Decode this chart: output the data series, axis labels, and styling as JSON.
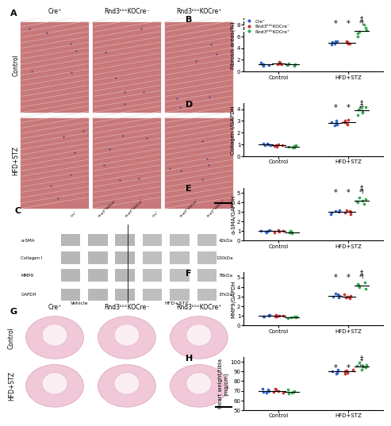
{
  "panel_B": {
    "title": "B",
    "ylabel": "Fibrosis areas(%)",
    "xticks": [
      "Control",
      "HFD+STZ"
    ],
    "ylim": [
      0,
      9
    ],
    "yticks": [
      0,
      2,
      4,
      6,
      8
    ],
    "blue_control": [
      1.1,
      1.3,
      1.5,
      1.2,
      1.0
    ],
    "red_control": [
      1.4,
      1.6,
      1.3,
      1.5,
      1.2
    ],
    "green_control": [
      1.2,
      1.4,
      1.1,
      1.3,
      1.0
    ],
    "blue_hfd": [
      4.8,
      5.0,
      5.2,
      4.6,
      5.1
    ],
    "red_hfd": [
      4.7,
      4.9,
      5.1,
      4.8,
      5.0
    ],
    "green_hfd": [
      6.0,
      6.5,
      7.0,
      7.5,
      8.0,
      6.8
    ]
  },
  "panel_D": {
    "title": "D",
    "ylabel": "Collagen I/GAPDH",
    "xticks": [
      "Control",
      "HFD+STZ"
    ],
    "ylim": [
      0,
      4.5
    ],
    "yticks": [
      0,
      1,
      2,
      3,
      4
    ],
    "blue_control": [
      0.9,
      1.0,
      1.1,
      0.95,
      1.05
    ],
    "red_control": [
      0.85,
      0.9,
      1.0,
      0.95,
      0.8
    ],
    "green_control": [
      0.7,
      0.8,
      0.9,
      0.75,
      0.85
    ],
    "blue_hfd": [
      2.6,
      2.8,
      3.0,
      2.7,
      2.9
    ],
    "red_hfd": [
      2.7,
      2.9,
      3.1,
      2.8,
      3.0
    ],
    "green_hfd": [
      3.5,
      3.8,
      4.0,
      4.2,
      3.7,
      4.1
    ]
  },
  "panel_E": {
    "title": "E",
    "ylabel": "α-SMA/GAPDH",
    "xticks": [
      "Control",
      "HFD+STZ"
    ],
    "ylim": [
      0,
      5.5
    ],
    "yticks": [
      0,
      1,
      2,
      3,
      4,
      5
    ],
    "blue_control": [
      0.9,
      1.0,
      1.1,
      0.95,
      1.05
    ],
    "red_control": [
      0.9,
      1.0,
      1.1,
      1.0,
      0.95
    ],
    "green_control": [
      0.8,
      0.9,
      1.0,
      0.85,
      0.95
    ],
    "blue_hfd": [
      2.8,
      3.0,
      3.2,
      2.9,
      3.1
    ],
    "red_hfd": [
      2.9,
      3.0,
      3.2,
      3.1,
      2.8
    ],
    "green_hfd": [
      3.8,
      4.0,
      4.3,
      4.5,
      4.1,
      4.2
    ]
  },
  "panel_F": {
    "title": "F",
    "ylabel": "MMP9/GAPDH",
    "xticks": [
      "Control",
      "HFD+STZ"
    ],
    "ylim": [
      0,
      5.5
    ],
    "yticks": [
      0,
      1,
      2,
      3,
      4,
      5
    ],
    "blue_control": [
      0.9,
      1.0,
      1.1,
      0.95,
      1.05
    ],
    "red_control": [
      0.9,
      1.0,
      1.1,
      1.0,
      0.95
    ],
    "green_control": [
      0.75,
      0.85,
      0.95,
      0.8,
      0.9
    ],
    "blue_hfd": [
      2.9,
      3.1,
      3.3,
      3.0,
      3.2
    ],
    "red_hfd": [
      2.8,
      3.0,
      3.2,
      3.1,
      2.9
    ],
    "green_hfd": [
      3.8,
      4.0,
      4.3,
      4.5,
      4.1,
      4.2
    ]
  },
  "panel_H": {
    "title": "H",
    "ylabel": "Heart weight/tibia\n(mg/cm)",
    "xticks": [
      "Control",
      "HFD+STZ"
    ],
    "ylim": [
      50,
      105
    ],
    "yticks": [
      50,
      60,
      70,
      80,
      90,
      100
    ],
    "blue_control": [
      68,
      70,
      72,
      69,
      71
    ],
    "red_control": [
      68,
      70,
      72,
      69,
      71
    ],
    "green_control": [
      67,
      69,
      71,
      68,
      70
    ],
    "blue_hfd": [
      88,
      90,
      92,
      89,
      91
    ],
    "red_hfd": [
      88,
      90,
      92,
      89,
      91
    ],
    "green_hfd": [
      92,
      95,
      97,
      99,
      94,
      96
    ]
  },
  "legend": {
    "labels": [
      "Cre⁺",
      "Rnd3ᵏᵏᵏKOCre⁻",
      "Rnd3ᵏᵏᵏKOCre⁺"
    ],
    "colors": [
      "#3366cc",
      "#cc3333",
      "#33aa55"
    ]
  },
  "colors": {
    "blue": "#3366cc",
    "red": "#cc3333",
    "green": "#33aa55"
  },
  "panel_A": {
    "col_labels": [
      "Cre⁺",
      "Rnd3ᵏᵏᵏKOCre⁻",
      "Rnd3ᵏᵏᵏKOCre⁺"
    ],
    "row_labels": [
      "Control",
      "HFD+STZ"
    ],
    "bg_color": "#c8787a",
    "stripe_color": "#e8c8c0"
  },
  "panel_C": {
    "band_labels": [
      "α-SMA",
      "Collagen I",
      "MMP9",
      "GAPDH"
    ],
    "band_kda": [
      "42kDa",
      "130kDa",
      "78kDa",
      "37kDa"
    ],
    "col_headers": [
      "Cre⁺",
      "Rnd3ᵏᵏᵏKOCre⁻",
      "Rnd3ᵏᵏᵏKOCre⁺",
      "Cre⁺",
      "Rnd3ᵏᵏᵏKOCre⁻",
      "Rnd3ᵏᵏᵏKOCre⁺"
    ],
    "group_labels": [
      "Vehicle",
      "HFD+STZ"
    ]
  },
  "panel_G": {
    "col_labels": [
      "Cre⁺",
      "Rnd3ᵏᵏᵏKOCre⁻",
      "Rnd3ᵏᵏᵏKOCre⁺"
    ],
    "row_labels": [
      "Control",
      "HFD+STZ"
    ],
    "heart_color": "#f0c8d8",
    "heart_edge": "#d8a0b8"
  }
}
